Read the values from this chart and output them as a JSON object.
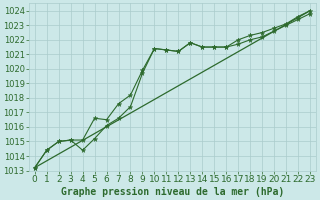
{
  "title": "Graphe pression niveau de la mer (hPa)",
  "bg_color": "#cce8e8",
  "grid_color": "#aacccc",
  "line_color": "#2d6a2d",
  "xlim": [
    -0.5,
    23.5
  ],
  "ylim": [
    1013,
    1024.5
  ],
  "yticks": [
    1013,
    1014,
    1015,
    1016,
    1017,
    1018,
    1019,
    1020,
    1021,
    1022,
    1023,
    1024
  ],
  "xticks": [
    0,
    1,
    2,
    3,
    4,
    5,
    6,
    7,
    8,
    9,
    10,
    11,
    12,
    13,
    14,
    15,
    16,
    17,
    18,
    19,
    20,
    21,
    22,
    23
  ],
  "series1_x": [
    0,
    1,
    2,
    3,
    4,
    5,
    6,
    7,
    8,
    9,
    10,
    11,
    12,
    13,
    14,
    15,
    16,
    17,
    18,
    19,
    20,
    21,
    22,
    23
  ],
  "series1_y": [
    1013.2,
    1014.4,
    1015.0,
    1015.1,
    1014.4,
    1015.2,
    1016.1,
    1016.6,
    1017.4,
    1019.7,
    1021.4,
    1021.3,
    1021.2,
    1021.8,
    1021.5,
    1021.5,
    1021.5,
    1021.7,
    1022.0,
    1022.2,
    1022.6,
    1023.0,
    1023.4,
    1023.8
  ],
  "series2_x": [
    0,
    1,
    2,
    3,
    4,
    5,
    6,
    7,
    8,
    9,
    10,
    11,
    12,
    13,
    14,
    15,
    16,
    17,
    18,
    19,
    20,
    21,
    22,
    23
  ],
  "series2_y": [
    1013.2,
    1014.4,
    1015.0,
    1015.1,
    1015.1,
    1016.6,
    1016.5,
    1017.6,
    1018.2,
    1019.9,
    1021.4,
    1021.3,
    1021.2,
    1021.8,
    1021.5,
    1021.5,
    1021.5,
    1022.0,
    1022.3,
    1022.5,
    1022.8,
    1023.1,
    1023.6,
    1024.0
  ],
  "trend_x": [
    0,
    23
  ],
  "trend_y": [
    1013.2,
    1024.0
  ],
  "xlabel_fontsize": 6.5,
  "ylabel_fontsize": 6.0,
  "title_fontsize": 7.0,
  "marker_size": 3.5
}
